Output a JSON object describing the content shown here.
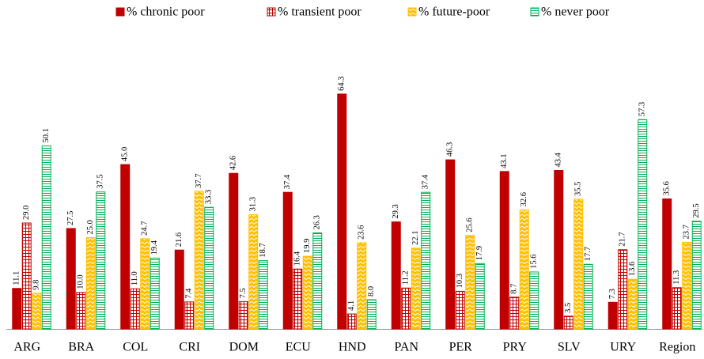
{
  "chart_data": {
    "type": "bar",
    "categories": [
      "ARG",
      "BRA",
      "COL",
      "CRI",
      "DOM",
      "ECU",
      "HND",
      "PAN",
      "PER",
      "PRY",
      "SLV",
      "URY",
      "Region"
    ],
    "series": [
      {
        "name": "% chronic poor",
        "color": "#c00000",
        "values": [
          11.1,
          27.5,
          45.0,
          21.6,
          42.6,
          37.4,
          64.3,
          29.3,
          46.3,
          43.1,
          43.4,
          7.3,
          35.6
        ],
        "value_labels": [
          "11.1",
          "27.5",
          "45.0",
          "21.6",
          "42.6",
          "37.4",
          "64.3",
          "29.3",
          "46.3",
          "43.1",
          "43.4",
          "7.3",
          "35.6"
        ]
      },
      {
        "name": "% transient poor",
        "color": "#c00000",
        "values": [
          29.0,
          10.0,
          11.0,
          7.4,
          7.5,
          16.4,
          4.1,
          11.2,
          10.3,
          8.7,
          3.5,
          21.7,
          11.3
        ],
        "value_labels": [
          "29.0",
          "10.0",
          "11.0",
          "7.4",
          "7.5",
          "16.4",
          "4.1",
          "11.2",
          "10.3",
          "8.7",
          "3.5",
          "21.7",
          "11.3"
        ]
      },
      {
        "name": "% future-poor",
        "color": "#ffc000",
        "values": [
          9.8,
          25.0,
          24.7,
          37.7,
          31.3,
          19.9,
          23.6,
          22.1,
          25.6,
          32.6,
          35.5,
          13.6,
          23.7
        ],
        "value_labels": [
          "9.8",
          "25.0",
          "24.7",
          "37.7",
          "31.3",
          "19.9",
          "23.6",
          "22.1",
          "25.6",
          "32.6",
          "35.5",
          "13.6",
          "23.7"
        ]
      },
      {
        "name": "% never poor",
        "color": "#00b050",
        "values": [
          50.1,
          37.5,
          19.4,
          33.3,
          18.7,
          26.3,
          8.0,
          37.4,
          17.9,
          15.6,
          17.7,
          57.3,
          29.5
        ],
        "value_labels": [
          "50.1",
          "37.5",
          "19.4",
          "33.3",
          "18.7",
          "26.3",
          "8.0",
          "37.4",
          "17.9",
          "15.6",
          "17.7",
          "57.3",
          "29.5"
        ]
      }
    ]
  }
}
